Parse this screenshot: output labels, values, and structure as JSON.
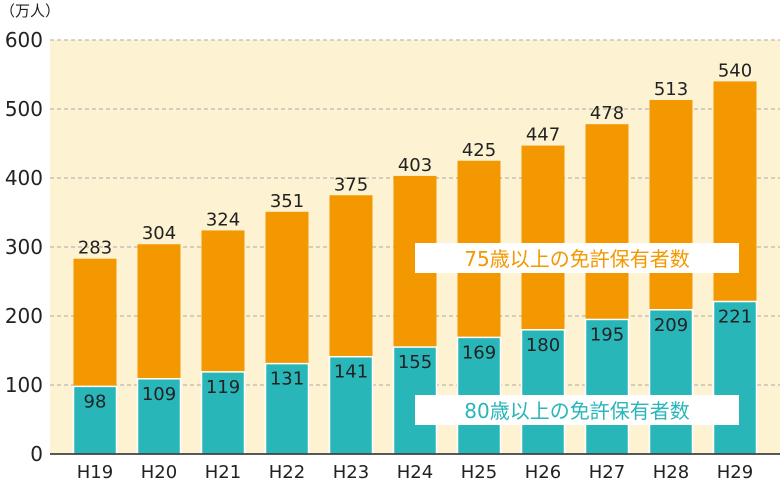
{
  "chart_data": {
    "type": "bar",
    "stacked": false,
    "overlay": true,
    "unit": "（万人）",
    "categories": [
      "H19",
      "H20",
      "H21",
      "H22",
      "H23",
      "H24",
      "H25",
      "H26",
      "H27",
      "H28",
      "H29"
    ],
    "series": [
      {
        "name": "75歳以上の免許保有者数",
        "color": "#f39800",
        "values": [
          283,
          304,
          324,
          351,
          375,
          403,
          425,
          447,
          478,
          513,
          540
        ]
      },
      {
        "name": "80歳以上の免許保有者数",
        "color": "#29b6b9",
        "values": [
          98,
          109,
          119,
          131,
          141,
          155,
          169,
          180,
          195,
          209,
          221
        ]
      }
    ],
    "ylim": [
      0,
      600
    ],
    "yticks": [
      0,
      100,
      200,
      300,
      400,
      500,
      600
    ],
    "grid": true,
    "background": "#fdf3d2",
    "legend_placement": "inside-labels"
  }
}
